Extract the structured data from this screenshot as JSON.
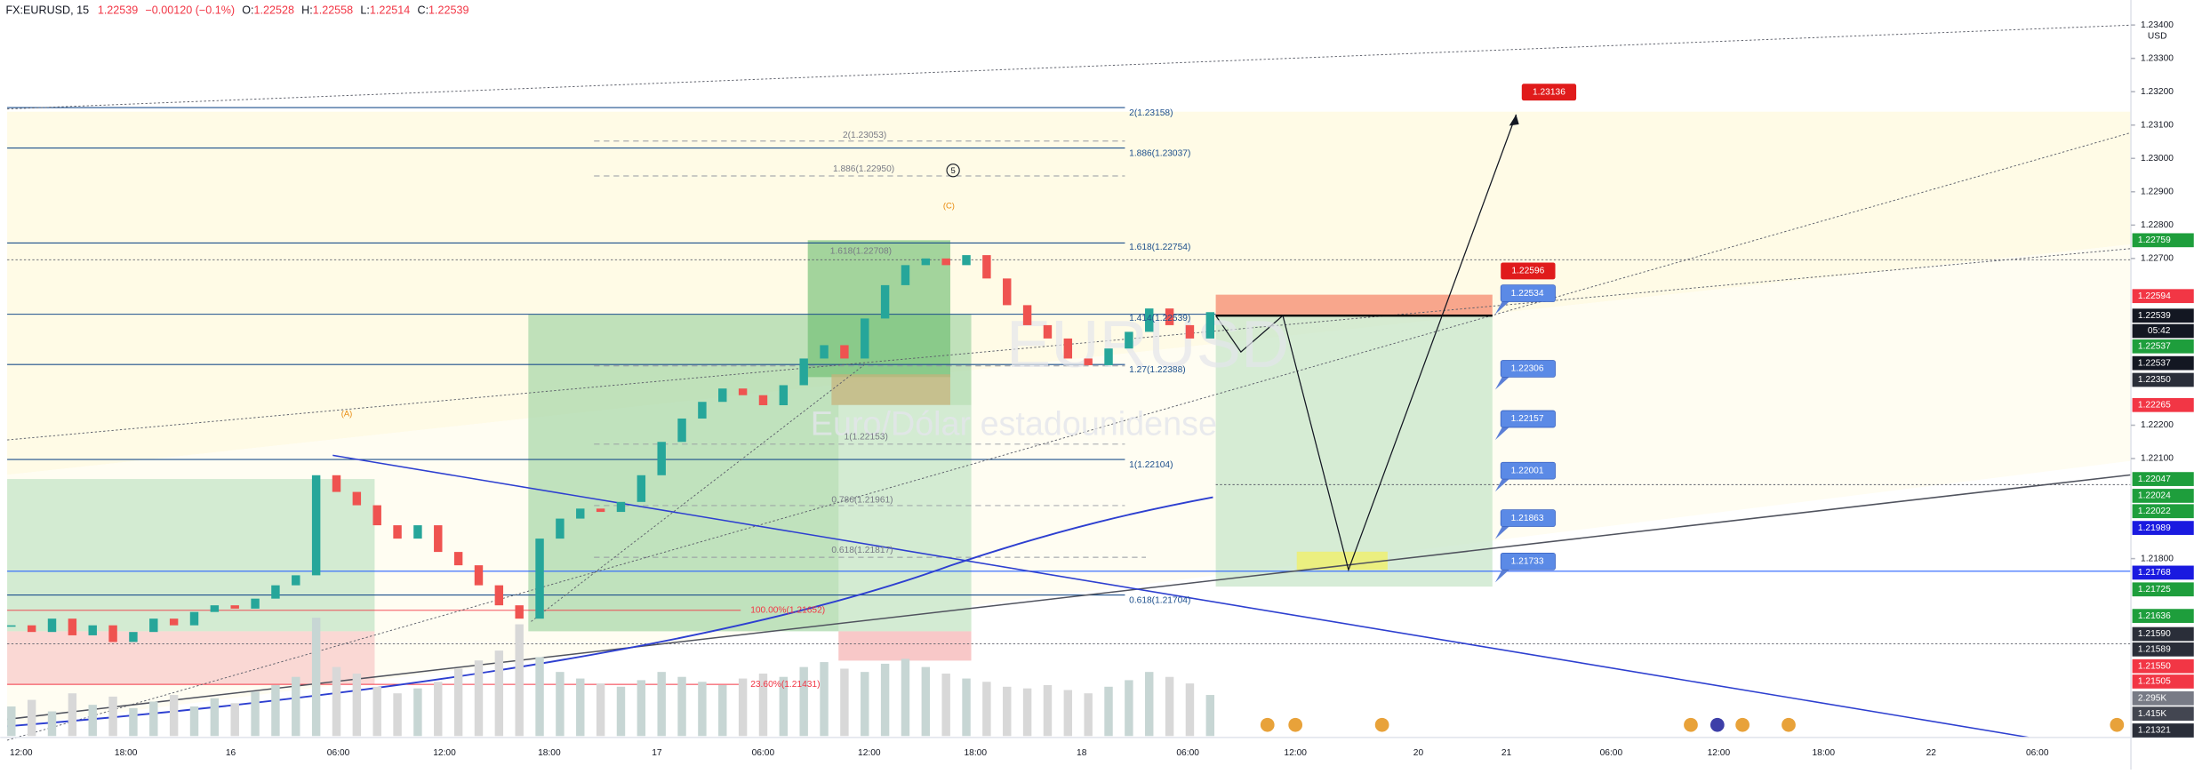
{
  "header": {
    "symbol": "FX:EURUSD, 15",
    "last": "1.22539",
    "change": "−0.00120 (−0.1%)",
    "open_label": "O:",
    "open": "1.22528",
    "high_label": "H:",
    "high": "1.22558",
    "low_label": "L:",
    "low": "1.22514",
    "close_label": "C:",
    "close": "1.22539"
  },
  "watermark": {
    "symbol": "EURUSD",
    "name": "Euro/Dólar estadounidense"
  },
  "chart_data": {
    "type": "candlestick",
    "currency": "USD",
    "ylim": [
      1.21268,
      1.23475
    ],
    "yticks": [
      {
        "value": 1.234,
        "label": "1.23400"
      },
      {
        "value": 1.233,
        "label": "1.23300"
      },
      {
        "value": 1.232,
        "label": "1.23200"
      },
      {
        "value": 1.231,
        "label": "1.23100"
      },
      {
        "value": 1.23,
        "label": "1.23000"
      },
      {
        "value": 1.229,
        "label": "1.22900"
      },
      {
        "value": 1.228,
        "label": "1.22800"
      },
      {
        "value": 1.227,
        "label": "1.22700"
      },
      {
        "value": 1.222,
        "label": "1.22200"
      },
      {
        "value": 1.221,
        "label": "1.22100"
      },
      {
        "value": 1.218,
        "label": "1.21800"
      }
    ],
    "up_color": "#26a69a",
    "down_color": "#ef5350",
    "close": [
      1.216,
      1.2158,
      1.2162,
      1.2157,
      1.216,
      1.2155,
      1.2158,
      1.2162,
      1.216,
      1.2164,
      1.2166,
      1.2165,
      1.2168,
      1.2172,
      1.2175,
      1.2205,
      1.22,
      1.2196,
      1.219,
      1.2186,
      1.219,
      1.2182,
      1.2178,
      1.2172,
      1.2166,
      1.2162,
      1.2186,
      1.2192,
      1.2195,
      1.2194,
      1.2197,
      1.2205,
      1.2215,
      1.2222,
      1.2227,
      1.2231,
      1.2229,
      1.2226,
      1.2232,
      1.224,
      1.2244,
      1.224,
      1.2252,
      1.2262,
      1.2268,
      1.227,
      1.2268,
      1.2271,
      1.2264,
      1.2256,
      1.225,
      1.2246,
      1.224,
      1.2238,
      1.2243,
      1.2248,
      1.2255,
      1.225,
      1.2246,
      1.22539
    ],
    "volume": [
      1800,
      2200,
      1500,
      2600,
      1900,
      2400,
      1700,
      2100,
      2500,
      1800,
      2300,
      2000,
      2700,
      3100,
      3600,
      7200,
      4200,
      3800,
      3000,
      2600,
      2900,
      3300,
      4100,
      4600,
      5200,
      6800,
      4800,
      3900,
      3500,
      3200,
      3000,
      3400,
      3900,
      3600,
      3300,
      3100,
      3500,
      3800,
      3600,
      4200,
      4500,
      4100,
      3900,
      4400,
      4700,
      4200,
      3800,
      3500,
      3300,
      3000,
      2900,
      3100,
      2800,
      2600,
      3000,
      3400,
      3900,
      3600,
      3200,
      2500
    ],
    "volume_tags": [
      "2.295K",
      "1.415K"
    ],
    "price_tags": [
      {
        "value": 1.22759,
        "label": "1.22759",
        "color": "#1e9e3c"
      },
      {
        "value": 1.22594,
        "label": "1.22594",
        "color": "#f23645"
      },
      {
        "value": 1.22539,
        "label": "1.22539",
        "color": "#131722"
      },
      {
        "value": 1.22537,
        "label": "1.22537",
        "color": "#1e9e3c"
      },
      {
        "value": 1.22537,
        "label": "1.22537",
        "color": "#131722"
      },
      {
        "value": 1.2235,
        "label": "1.22350",
        "color": "#2a2e39"
      },
      {
        "value": 1.22265,
        "label": "1.22265",
        "color": "#f23645"
      },
      {
        "value": 1.22047,
        "label": "1.22047",
        "color": "#1e9e3c"
      },
      {
        "value": 1.22024,
        "label": "1.22024",
        "color": "#1e9e3c"
      },
      {
        "value": 1.22022,
        "label": "1.22022",
        "color": "#1e9e3c"
      },
      {
        "value": 1.21989,
        "label": "1.21989",
        "color": "#1a1ae0"
      },
      {
        "value": 1.21768,
        "label": "1.21768",
        "color": "#1a1ae0"
      },
      {
        "value": 1.21725,
        "label": "1.21725",
        "color": "#1e9e3c"
      },
      {
        "value": 1.21636,
        "label": "1.21636",
        "color": "#1e9e3c"
      },
      {
        "value": 1.2159,
        "label": "1.21590",
        "color": "#2a2e39"
      },
      {
        "value": 1.21589,
        "label": "1.21589",
        "color": "#2a2e39"
      },
      {
        "value": 1.2155,
        "label": "1.21550",
        "color": "#f23645"
      },
      {
        "value": 1.21505,
        "label": "1.21505",
        "color": "#f23645"
      },
      {
        "value": 1.21321,
        "label": "1.21321",
        "color": "#2a2e39"
      }
    ],
    "countdown": "05:42",
    "time_labels": [
      "12:00",
      "18:00",
      "16",
      "06:00",
      "12:00",
      "18:00",
      "17",
      "06:00",
      "12:00",
      "18:00",
      "18",
      "06:00",
      "12:00",
      "20",
      "21",
      "06:00",
      "12:00",
      "18:00",
      "22",
      "06:00"
    ],
    "fib_labels": [
      {
        "text": "2(1.23158)",
        "color": "#1c4f8c"
      },
      {
        "text": "2(1.23053)",
        "color": "#787b86"
      },
      {
        "text": "1.886(1.23037)",
        "color": "#1c4f8c"
      },
      {
        "text": "1.886(1.22950)",
        "color": "#787b86"
      },
      {
        "text": "1.618(1.22708)",
        "color": "#787b86"
      },
      {
        "text": "1.618(1.22754)",
        "color": "#1c4f8c"
      },
      {
        "text": "1.414(1.22539)",
        "color": "#1c4f8c"
      },
      {
        "text": "1.27(1.22388)",
        "color": "#1c4f8c"
      },
      {
        "text": "1(1.22153)",
        "color": "#787b86"
      },
      {
        "text": "1(1.22104)",
        "color": "#1c4f8c"
      },
      {
        "text": "0.786(1.21961)",
        "color": "#787b86"
      },
      {
        "text": "0.618(1.21817)",
        "color": "#787b86"
      },
      {
        "text": "0.618(1.21704)",
        "color": "#1c4f8c"
      },
      {
        "text": "100.00%(1.21652)",
        "color": "#f23645"
      },
      {
        "text": "23.60%(1.21431)",
        "color": "#f23645"
      }
    ],
    "wave_labels": [
      "(A)",
      "(C)",
      "5"
    ],
    "callouts": [
      "1.22534",
      "1.22306",
      "1.22157",
      "1.22001",
      "1.21863",
      "1.21733"
    ],
    "targets": [
      "1.22596",
      "1.23136"
    ]
  }
}
